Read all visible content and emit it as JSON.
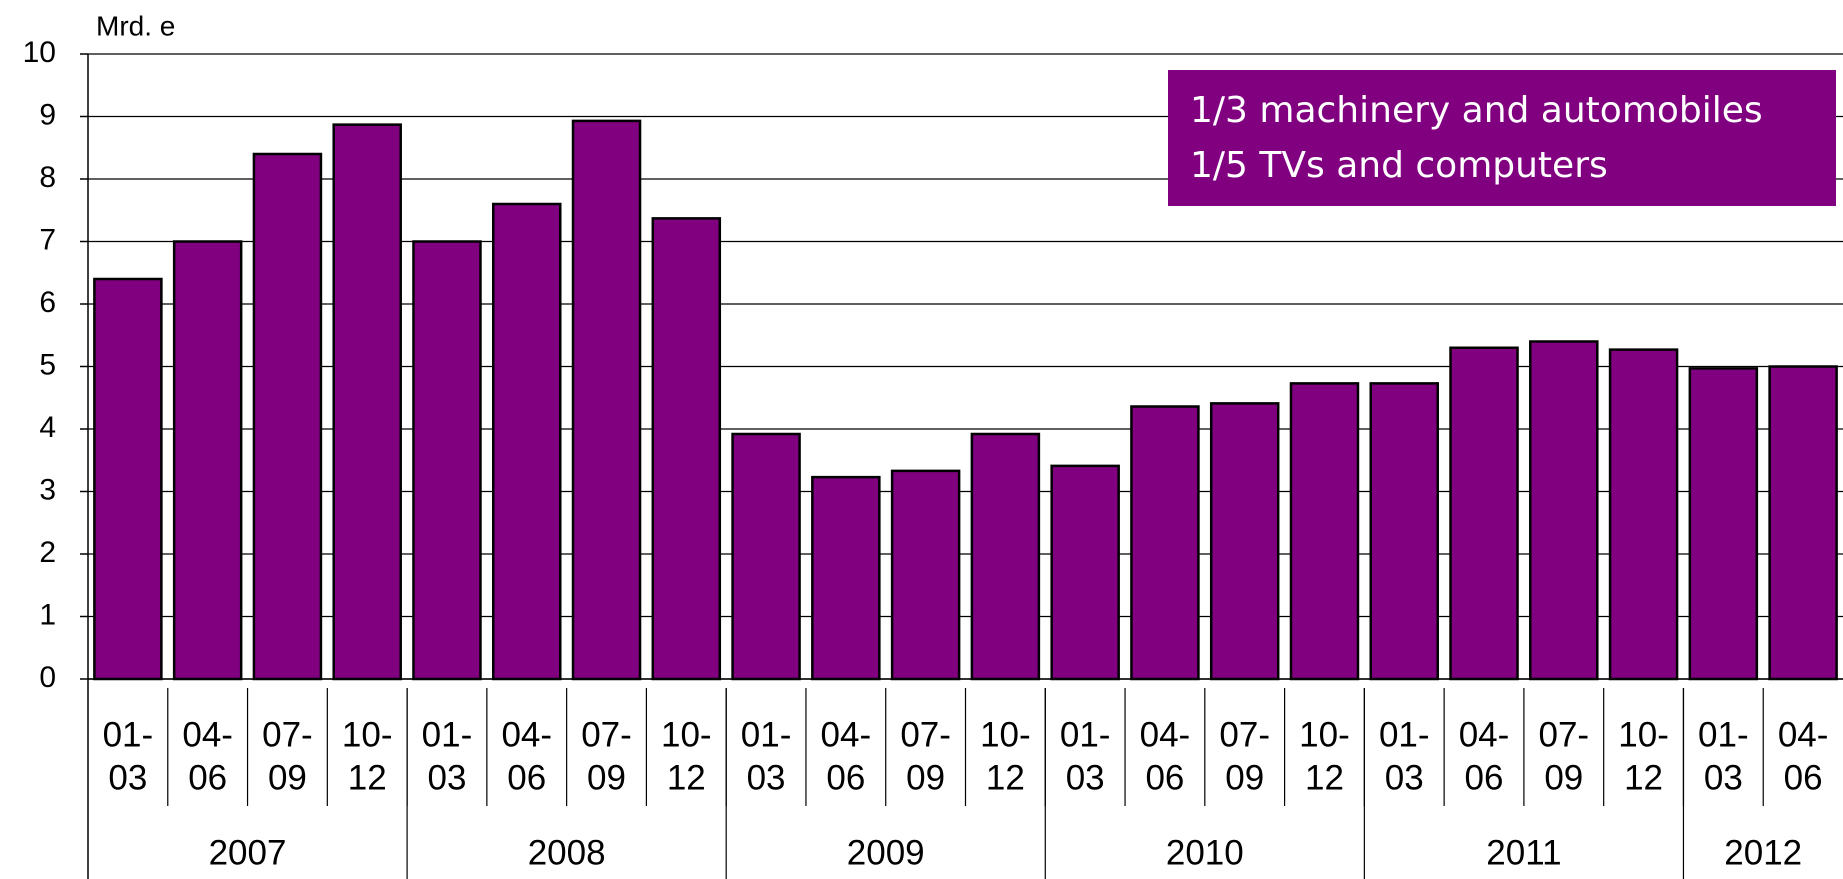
{
  "chart_data": {
    "type": "bar",
    "y_label": "Mrd. e",
    "categories": [
      [
        "01-",
        "03"
      ],
      [
        "04-",
        "06"
      ],
      [
        "07-",
        "09"
      ],
      [
        "10-",
        "12"
      ],
      [
        "01-",
        "03"
      ],
      [
        "04-",
        "06"
      ],
      [
        "07-",
        "09"
      ],
      [
        "10-",
        "12"
      ],
      [
        "01-",
        "03"
      ],
      [
        "04-",
        "06"
      ],
      [
        "07-",
        "09"
      ],
      [
        "10-",
        "12"
      ],
      [
        "01-",
        "03"
      ],
      [
        "04-",
        "06"
      ],
      [
        "07-",
        "09"
      ],
      [
        "10-",
        "12"
      ],
      [
        "01-",
        "03"
      ],
      [
        "04-",
        "06"
      ],
      [
        "07-",
        "09"
      ],
      [
        "10-",
        "12"
      ],
      [
        "01-",
        "03"
      ],
      [
        "04-",
        "06"
      ]
    ],
    "groups": [
      {
        "label": "2007",
        "span": 4
      },
      {
        "label": "2008",
        "span": 4
      },
      {
        "label": "2009",
        "span": 4
      },
      {
        "label": "2010",
        "span": 4
      },
      {
        "label": "2011",
        "span": 4
      },
      {
        "label": "2012",
        "span": 2
      }
    ],
    "values": [
      6.4,
      7.0,
      8.4,
      8.87,
      7.0,
      7.6,
      8.93,
      7.37,
      3.92,
      3.23,
      3.33,
      3.92,
      3.41,
      4.36,
      4.41,
      4.73,
      4.73,
      5.3,
      5.4,
      5.27,
      4.97,
      5.0
    ],
    "color": "#800080",
    "ylim": [
      0,
      10
    ],
    "yticks": [
      0,
      1,
      2,
      3,
      4,
      5,
      6,
      7,
      8,
      9,
      10
    ],
    "grid": true,
    "annotation": [
      "1/3 machinery and automobiles",
      "1/5 TVs and computers"
    ],
    "annotation_color": "#800080"
  }
}
